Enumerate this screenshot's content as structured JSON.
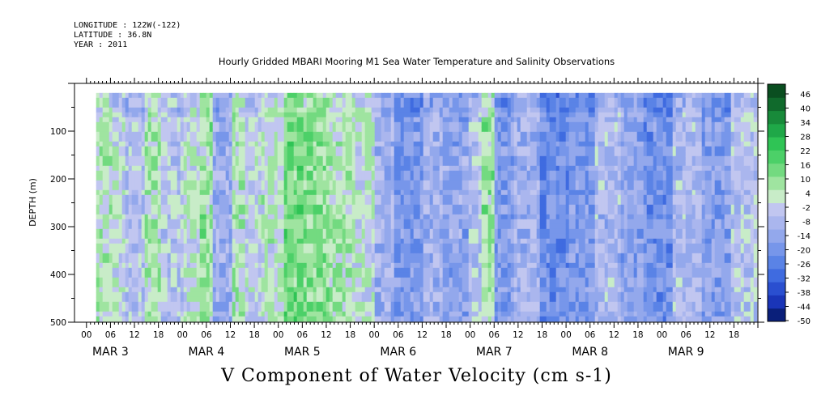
{
  "header": {
    "longitude": "LONGITUDE : 122W(-122)",
    "latitude": "LATITUDE : 36.8N",
    "year": "YEAR : 2011"
  },
  "chart_data": {
    "type": "heatmap",
    "title": "Hourly Gridded MBARI Mooring M1 Sea Water Temperature and Salinity Observations",
    "footer_title": "V Component of Water Velocity (cm s-1)",
    "ylabel": "DEPTH (m)",
    "ylim": [
      500,
      0
    ],
    "yticks": [
      100,
      200,
      300,
      400,
      500
    ],
    "xlabel": "",
    "x_hour_labels": [
      "00",
      "06",
      "12",
      "18",
      "00",
      "06",
      "12",
      "18",
      "00",
      "06",
      "12",
      "18",
      "00",
      "06",
      "12",
      "18",
      "00",
      "06",
      "12",
      "18",
      "00",
      "06",
      "12",
      "18",
      "00",
      "06",
      "12",
      "18"
    ],
    "x_day_labels": [
      "MAR  3",
      "MAR  4",
      "MAR  5",
      "MAR  6",
      "MAR  7",
      "MAR  8",
      "MAR  9"
    ],
    "colorbar_levels": [
      "46",
      "40",
      "34",
      "28",
      "22",
      "16",
      "10",
      "4",
      "-2",
      "-8",
      "-14",
      "-20",
      "-26",
      "-32",
      "-38",
      "-44",
      "-50"
    ],
    "colorbar_range": [
      -50,
      50
    ],
    "colorbar_palette": [
      "#0a1f7a",
      "#1a35b8",
      "#2a4fd0",
      "#3f6be0",
      "#5a83e6",
      "#7796ea",
      "#93a8ec",
      "#aab6ee",
      "#c1c6f0",
      "#c8ecc8",
      "#9fe4a0",
      "#73da80",
      "#4cd068",
      "#2fc455",
      "#1fa848",
      "#188a3a",
      "#106a2c",
      "#0a4e20"
    ],
    "depth_range_data": [
      20,
      490
    ],
    "time_range_days": [
      3.1,
      9.97
    ],
    "field_bands": [
      {
        "t_start": 3.1,
        "t_end": 3.25,
        "mean": 4
      },
      {
        "t_start": 3.25,
        "t_end": 3.4,
        "mean": 0
      },
      {
        "t_start": 3.4,
        "t_end": 3.6,
        "mean": -6
      },
      {
        "t_start": 3.6,
        "t_end": 3.75,
        "mean": 6
      },
      {
        "t_start": 3.75,
        "t_end": 4.0,
        "mean": -4
      },
      {
        "t_start": 4.0,
        "t_end": 4.15,
        "mean": 2
      },
      {
        "t_start": 4.15,
        "t_end": 4.3,
        "mean": 8
      },
      {
        "t_start": 4.3,
        "t_end": 4.5,
        "mean": -12
      },
      {
        "t_start": 4.5,
        "t_end": 4.65,
        "mean": 6
      },
      {
        "t_start": 4.65,
        "t_end": 4.8,
        "mean": -2
      },
      {
        "t_start": 4.8,
        "t_end": 5.05,
        "mean": 3
      },
      {
        "t_start": 5.05,
        "t_end": 5.25,
        "mean": 14
      },
      {
        "t_start": 5.25,
        "t_end": 5.5,
        "mean": 10
      },
      {
        "t_start": 5.5,
        "t_end": 5.75,
        "mean": 6
      },
      {
        "t_start": 5.75,
        "t_end": 6.0,
        "mean": 2
      },
      {
        "t_start": 6.0,
        "t_end": 6.2,
        "mean": -10
      },
      {
        "t_start": 6.2,
        "t_end": 6.5,
        "mean": -18
      },
      {
        "t_start": 6.5,
        "t_end": 6.7,
        "mean": -10
      },
      {
        "t_start": 6.7,
        "t_end": 6.95,
        "mean": -14
      },
      {
        "t_start": 6.95,
        "t_end": 7.1,
        "mean": -6
      },
      {
        "t_start": 7.1,
        "t_end": 7.25,
        "mean": 8
      },
      {
        "t_start": 7.25,
        "t_end": 7.45,
        "mean": -16
      },
      {
        "t_start": 7.45,
        "t_end": 7.7,
        "mean": -10
      },
      {
        "t_start": 7.7,
        "t_end": 8.0,
        "mean": -22
      },
      {
        "t_start": 8.0,
        "t_end": 8.3,
        "mean": -18
      },
      {
        "t_start": 8.3,
        "t_end": 8.55,
        "mean": -8
      },
      {
        "t_start": 8.55,
        "t_end": 8.8,
        "mean": -14
      },
      {
        "t_start": 8.8,
        "t_end": 9.1,
        "mean": -20
      },
      {
        "t_start": 9.1,
        "t_end": 9.4,
        "mean": -8
      },
      {
        "t_start": 9.4,
        "t_end": 9.7,
        "mean": -16
      },
      {
        "t_start": 9.7,
        "t_end": 9.97,
        "mean": -4
      }
    ]
  }
}
